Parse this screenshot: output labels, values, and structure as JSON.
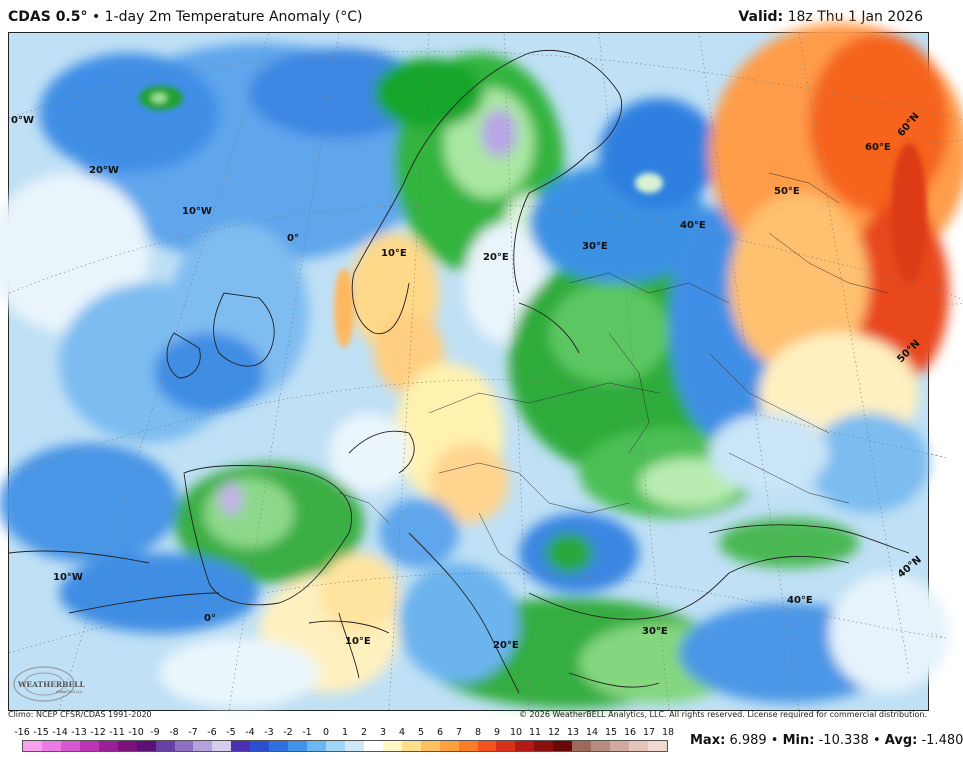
{
  "header": {
    "model": "CDAS 0.5°",
    "separator": "•",
    "product": "1-day 2m Temperature Anomaly (°C)",
    "valid_label": "Valid:",
    "valid_time": "18z Thu 1 Jan 2026"
  },
  "map": {
    "region": "Europe",
    "grid_labels": [
      {
        "id": "lbl-0w-top",
        "text": "0°W"
      },
      {
        "id": "lbl-20w",
        "text": "20°W"
      },
      {
        "id": "lbl-10w-top",
        "text": "10°W"
      },
      {
        "id": "lbl-0-top",
        "text": "0°"
      },
      {
        "id": "lbl-10e-top",
        "text": "10°E"
      },
      {
        "id": "lbl-20e-top",
        "text": "20°E"
      },
      {
        "id": "lbl-30e-top",
        "text": "30°E"
      },
      {
        "id": "lbl-40e-top",
        "text": "40°E"
      },
      {
        "id": "lbl-50e",
        "text": "50°E"
      },
      {
        "id": "lbl-60e",
        "text": "60°E"
      },
      {
        "id": "lbl-60n",
        "text": "60°N"
      },
      {
        "id": "lbl-50n",
        "text": "50°N"
      },
      {
        "id": "lbl-40n",
        "text": "40°N"
      },
      {
        "id": "lbl-40e-bot",
        "text": "40°E"
      },
      {
        "id": "lbl-10w-bot",
        "text": "10°W"
      },
      {
        "id": "lbl-0-bot",
        "text": "0°"
      },
      {
        "id": "lbl-10e-bot",
        "text": "10°E"
      },
      {
        "id": "lbl-20e-bot",
        "text": "20°E"
      },
      {
        "id": "lbl-30e-bot",
        "text": "30°E"
      }
    ],
    "logo_text": "WEATHERBELL",
    "logo_subtext": "ANALYTICS LLC"
  },
  "footer": {
    "climo": "Climo: NCEP CFSR/CDAS 1991-2020",
    "copyright": "© 2026 WeatherBELL Analytics, LLC. All rights reserved. License required for commercial distribution."
  },
  "legend": {
    "ticks": [
      "-16",
      "-15",
      "-14",
      "-13",
      "-12",
      "-11",
      "-10",
      "-9",
      "-8",
      "-7",
      "-6",
      "-5",
      "-4",
      "-3",
      "-2",
      "-1",
      "0",
      "1",
      "2",
      "3",
      "4",
      "5",
      "6",
      "7",
      "8",
      "9",
      "10",
      "11",
      "12",
      "13",
      "14",
      "15",
      "16",
      "17",
      "18"
    ],
    "colors": [
      "#f7a1ee",
      "#ec7be3",
      "#d957d0",
      "#bd35b6",
      "#9a1f98",
      "#7c137c",
      "#5e1079",
      "#6a3fa3",
      "#8e6fc4",
      "#b4a2dd",
      "#d6ccee",
      "#4a2fb0",
      "#2a4fd0",
      "#2f6fe0",
      "#3f93ea",
      "#6ab7f2",
      "#9fd5f8",
      "#cfe8f8",
      "#ffffff",
      "#fff6c4",
      "#ffe08a",
      "#ffc060",
      "#ffa040",
      "#ff7c2a",
      "#f4531c",
      "#d8311a",
      "#b21a16",
      "#8a1010",
      "#6a0808",
      "#9c6a5c",
      "#b98c80",
      "#d3aaa0",
      "#e6c4bc",
      "#f2d8d2"
    ]
  },
  "stats": {
    "max_label": "Max:",
    "max_value": "6.989",
    "min_label": "Min:",
    "min_value": "-10.338",
    "avg_label": "Avg:",
    "avg_value": "-1.480",
    "sep": "•"
  }
}
